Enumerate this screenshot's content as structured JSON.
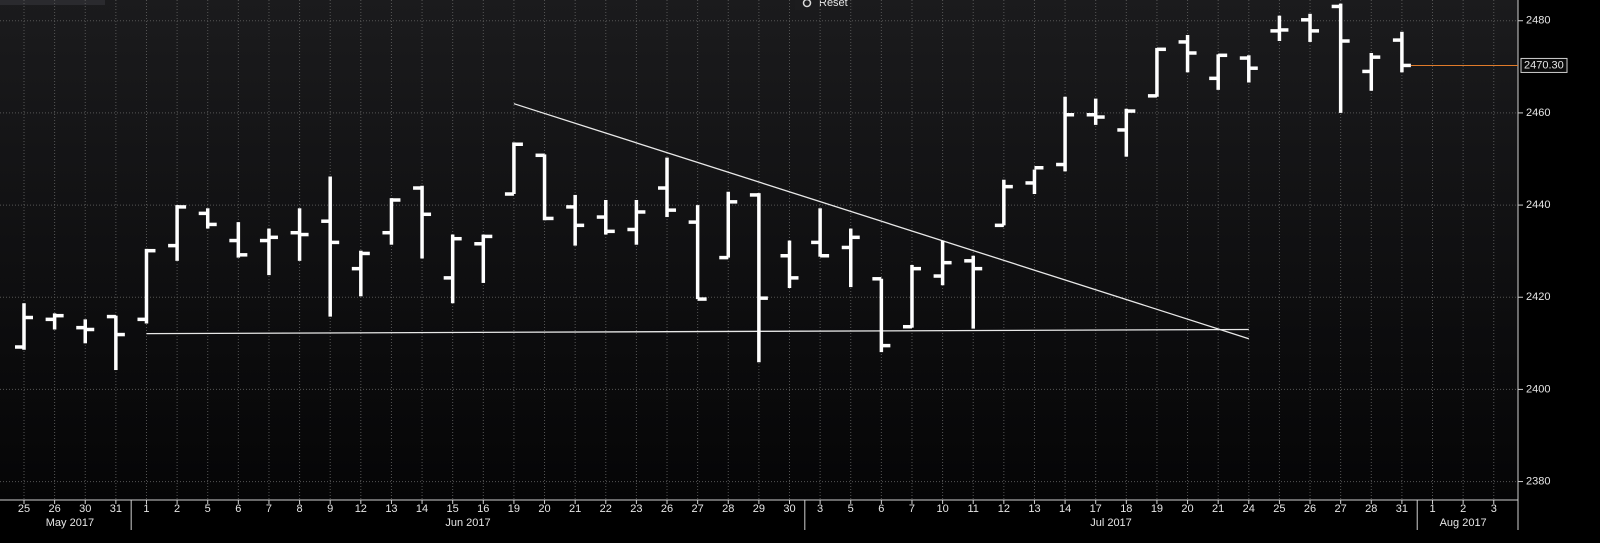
{
  "toolbar": {
    "reset": "Reset"
  },
  "chart_data": {
    "type": "ohlc",
    "categories": [
      "25",
      "26",
      "30",
      "31",
      "1",
      "2",
      "5",
      "6",
      "7",
      "8",
      "9",
      "12",
      "13",
      "14",
      "15",
      "16",
      "19",
      "20",
      "21",
      "22",
      "23",
      "26",
      "27",
      "28",
      "29",
      "30",
      "3",
      "5",
      "6",
      "7",
      "10",
      "11",
      "12",
      "13",
      "14",
      "17",
      "18",
      "19",
      "20",
      "21",
      "24",
      "25",
      "26",
      "27",
      "28",
      "31",
      "1",
      "2",
      "3"
    ],
    "months": [
      {
        "label": "May 2017",
        "first": 0,
        "last": 3
      },
      {
        "label": "Jun 2017",
        "first": 4,
        "last": 25
      },
      {
        "label": "Jul 2017",
        "first": 26,
        "last": 45
      },
      {
        "label": "Aug 2017",
        "first": 46,
        "last": 48
      }
    ],
    "open": [
      2409.2,
      2415.2,
      2413.4,
      2415.8,
      2415.2,
      2431.2,
      2438.2,
      2432.3,
      2432.3,
      2434.0,
      2436.5,
      2426.2,
      2434.0,
      2443.7,
      2424.2,
      2431.6,
      2442.4,
      2450.8,
      2439.6,
      2437.4,
      2434.7,
      2443.7,
      2436.3,
      2428.6,
      2442.2,
      2429.0,
      2431.9,
      2430.8,
      2424.0,
      2413.6,
      2424.6,
      2427.9,
      2435.6,
      2444.8,
      2448.8,
      2459.6,
      2456.3,
      2463.7,
      2475.4,
      2467.5,
      2471.9,
      2477.8,
      2480.2,
      2483.1,
      2469.0,
      2475.8,
      null,
      null,
      null
    ],
    "high": [
      2418.7,
      2416.5,
      2415.2,
      2416.0,
      2430.5,
      2440.0,
      2439.3,
      2436.3,
      2434.9,
      2439.3,
      2446.2,
      2430.1,
      2441.5,
      2444.2,
      2433.6,
      2433.6,
      2453.6,
      2451.0,
      2442.2,
      2441.1,
      2441.1,
      2450.3,
      2440.0,
      2442.9,
      2442.6,
      2432.3,
      2439.3,
      2434.9,
      2424.0,
      2427.0,
      2432.3,
      2429.0,
      2445.5,
      2447.7,
      2463.5,
      2463.1,
      2460.9,
      2474.1,
      2476.9,
      2472.7,
      2472.5,
      2481.1,
      2481.5,
      2483.7,
      2473.0,
      2477.6,
      null,
      null,
      null
    ],
    "low": [
      2408.6,
      2413.0,
      2410.0,
      2404.2,
      2414.3,
      2427.9,
      2434.9,
      2428.6,
      2424.8,
      2427.9,
      2415.8,
      2420.2,
      2431.4,
      2428.4,
      2418.7,
      2423.1,
      2442.4,
      2436.7,
      2431.2,
      2433.6,
      2431.4,
      2437.4,
      2419.6,
      2428.6,
      2405.9,
      2422.0,
      2428.8,
      2422.2,
      2408.1,
      2413.4,
      2422.6,
      2413.2,
      2435.6,
      2442.4,
      2447.3,
      2457.4,
      2450.5,
      2463.5,
      2468.8,
      2465.0,
      2466.6,
      2475.6,
      2475.4,
      2460.0,
      2464.8,
      2468.8,
      null,
      null,
      null
    ],
    "close": [
      2415.6,
      2416.0,
      2413.0,
      2411.9,
      2430.1,
      2439.6,
      2435.8,
      2429.2,
      2433.0,
      2433.6,
      2431.9,
      2429.5,
      2441.1,
      2438.0,
      2432.7,
      2433.2,
      2453.2,
      2437.1,
      2435.6,
      2434.3,
      2438.5,
      2438.9,
      2419.6,
      2440.7,
      2419.8,
      2424.2,
      2429.0,
      2433.0,
      2409.5,
      2426.2,
      2427.5,
      2426.2,
      2444.0,
      2448.1,
      2459.6,
      2459.1,
      2460.4,
      2473.8,
      2473.0,
      2472.5,
      2469.7,
      2478.0,
      2477.8,
      2475.6,
      2472.1,
      2470.3,
      null,
      null,
      null
    ],
    "color": "#ffffff",
    "last_price": {
      "value": 2470.3,
      "label": "2470.30",
      "color": "#e07b2a"
    },
    "trendlines": [
      {
        "x": [
          16,
          40
        ],
        "y": [
          2462,
          2411
        ]
      },
      {
        "x": [
          4,
          40
        ],
        "y": [
          2412.1,
          2413
        ]
      }
    ],
    "ylim": [
      2376,
      2484.5
    ],
    "yticks": [
      2380,
      2400,
      2420,
      2440,
      2460,
      2480
    ],
    "grid": true
  }
}
